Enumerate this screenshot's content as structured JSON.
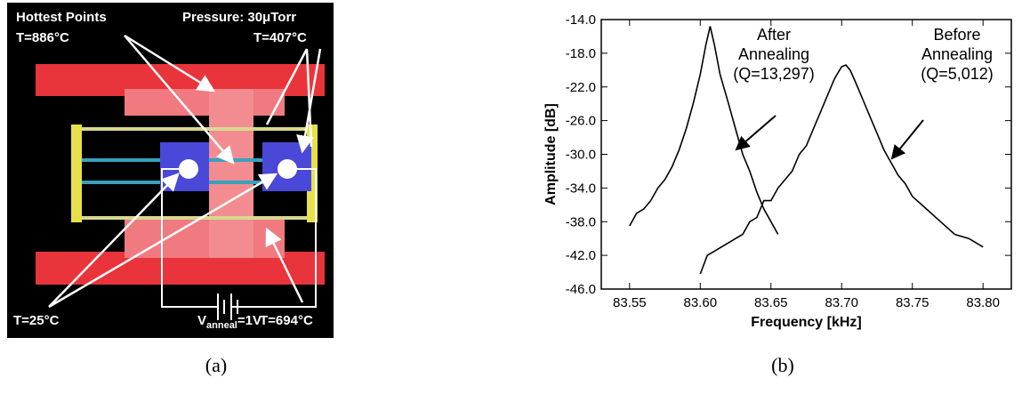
{
  "panel_a": {
    "hottest": "Hottest Points",
    "t_hot": "T=886°C",
    "pressure": "Pressure: 30μTorr",
    "t_407": "T=407°C",
    "t_25": "T=25°C",
    "t_694": "T=694°C",
    "v_anneal": {
      "main": "V",
      "sub": "anneal",
      "rest": "=1V"
    }
  },
  "chart_data": {
    "type": "line",
    "x_label": "Frequency [kHz]",
    "y_label": "Amplitude [dB]",
    "xlim": [
      83.53,
      83.82
    ],
    "ylim": [
      -46,
      -14
    ],
    "xticks": [
      83.55,
      {
        "value": 83.6,
        "label": "83.60"
      },
      83.65,
      {
        "value": 83.7,
        "label": "83.70"
      },
      83.75,
      {
        "value": 83.8,
        "label": "83.80"
      }
    ],
    "yticks": [
      {
        "value": -14,
        "label": "-14.0"
      },
      {
        "value": -18,
        "label": "-18.0"
      },
      {
        "value": -22,
        "label": "-22.0"
      },
      {
        "value": -26,
        "label": "-26.0"
      },
      {
        "value": -30,
        "label": "-30.0"
      },
      {
        "value": -34,
        "label": "-34.0"
      },
      {
        "value": -38,
        "label": "-38.0"
      },
      {
        "value": -42,
        "label": "-42.0"
      },
      {
        "value": -46,
        "label": "-46.0"
      }
    ],
    "annotations": [
      {
        "lines": [
          "After",
          "Annealing",
          "(Q=13,297)"
        ]
      },
      {
        "lines": [
          "Before",
          "Annealing",
          "(Q=5,012)"
        ]
      }
    ],
    "series": [
      {
        "color": "#000000",
        "x": [
          83.55,
          83.555,
          83.56,
          83.565,
          83.57,
          83.575,
          83.58,
          83.585,
          83.59,
          83.595,
          83.6,
          83.604,
          83.607,
          83.61,
          83.614,
          83.62,
          83.625,
          83.63,
          83.635,
          83.64,
          83.645,
          83.65,
          83.655
        ],
        "values": [
          -38.5,
          -37,
          -36.5,
          -35.5,
          -34,
          -33,
          -31.5,
          -29.5,
          -27,
          -24,
          -20.5,
          -17,
          -14.8,
          -17,
          -20.5,
          -24,
          -27,
          -30,
          -32,
          -34.5,
          -36.5,
          -38,
          -39.5
        ]
      },
      {
        "color": "#000000",
        "x": [
          83.6,
          83.605,
          83.61,
          83.615,
          83.62,
          83.625,
          83.63,
          83.635,
          83.64,
          83.645,
          83.65,
          83.655,
          83.66,
          83.665,
          83.67,
          83.675,
          83.68,
          83.685,
          83.69,
          83.695,
          83.7,
          83.703,
          83.706,
          83.71,
          83.715,
          83.72,
          83.725,
          83.73,
          83.735,
          83.74,
          83.745,
          83.75,
          83.76,
          83.77,
          83.78,
          83.79,
          83.8
        ],
        "values": [
          -44.2,
          -42,
          -41.5,
          -41,
          -40.5,
          -40,
          -39.5,
          -38,
          -37.5,
          -35.5,
          -35.5,
          -34,
          -33,
          -32,
          -30,
          -29,
          -27,
          -25,
          -23,
          -21,
          -19.6,
          -19.4,
          -20,
          -21.5,
          -23.5,
          -25.5,
          -27.5,
          -29.5,
          -31,
          -32.5,
          -33.5,
          -35,
          -36.5,
          -38,
          -39.5,
          -40,
          -41
        ]
      }
    ]
  },
  "captions": [
    "(a)",
    "(b)"
  ]
}
